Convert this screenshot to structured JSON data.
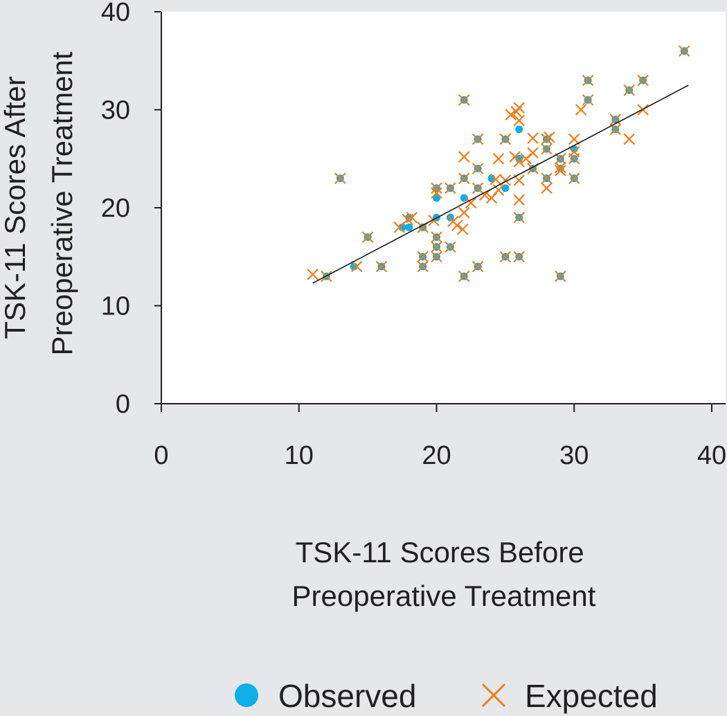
{
  "colors": {
    "background": "#e5e7ea",
    "plot_area": "#ffffff",
    "observed": "#0eaee8",
    "expected": "#ee7d1c",
    "axis": "#231f20",
    "fit_line": "#1a1a1a"
  },
  "chart_data": {
    "type": "scatter",
    "title": "",
    "xlabel": [
      "TSK-11 Scores Before",
      "Preoperative Treatment"
    ],
    "ylabel": [
      "TSK-11 Scores After",
      "Preoperative Treatment"
    ],
    "xlim": [
      0,
      40
    ],
    "ylim": [
      0,
      40
    ],
    "xticks": [
      0,
      10,
      20,
      30,
      40
    ],
    "yticks": [
      0,
      10,
      20,
      30,
      40
    ],
    "grid": false,
    "legend": {
      "placement": "bottom",
      "entries": [
        {
          "name": "Observed",
          "marker": "circle"
        },
        {
          "name": "Expected",
          "marker": "x"
        }
      ]
    },
    "series": [
      {
        "name": "Observed",
        "marker": "circle",
        "points": [
          [
            12,
            13
          ],
          [
            13,
            23
          ],
          [
            14,
            14
          ],
          [
            15,
            17
          ],
          [
            16,
            14
          ],
          [
            17.5,
            18
          ],
          [
            18,
            18
          ],
          [
            18,
            19
          ],
          [
            19,
            18
          ],
          [
            19,
            15
          ],
          [
            19,
            14
          ],
          [
            20,
            17
          ],
          [
            20,
            16
          ],
          [
            20,
            15
          ],
          [
            20,
            19
          ],
          [
            20,
            21
          ],
          [
            20,
            22
          ],
          [
            21,
            22
          ],
          [
            21,
            19
          ],
          [
            21,
            16
          ],
          [
            22,
            31
          ],
          [
            22,
            23
          ],
          [
            22,
            21
          ],
          [
            22,
            13
          ],
          [
            23,
            27
          ],
          [
            23,
            24
          ],
          [
            23,
            22
          ],
          [
            23,
            14
          ],
          [
            24,
            23
          ],
          [
            25,
            27
          ],
          [
            25,
            22
          ],
          [
            25,
            15
          ],
          [
            26,
            28
          ],
          [
            26,
            25
          ],
          [
            26,
            19
          ],
          [
            26,
            15
          ],
          [
            27,
            24
          ],
          [
            28,
            27
          ],
          [
            28,
            26
          ],
          [
            28,
            23
          ],
          [
            29,
            25
          ],
          [
            29,
            24
          ],
          [
            29,
            13
          ],
          [
            30,
            26
          ],
          [
            30,
            25
          ],
          [
            30,
            23
          ],
          [
            31,
            33
          ],
          [
            31,
            31
          ],
          [
            33,
            29
          ],
          [
            33,
            28
          ],
          [
            34,
            32
          ],
          [
            35,
            33
          ],
          [
            38,
            36
          ]
        ]
      },
      {
        "name": "Expected",
        "marker": "x",
        "points": [
          [
            11,
            13.2
          ],
          [
            12,
            13
          ],
          [
            13,
            23
          ],
          [
            14.2,
            14
          ],
          [
            15,
            17
          ],
          [
            16,
            14
          ],
          [
            17.3,
            18
          ],
          [
            17.9,
            18.8
          ],
          [
            18.2,
            19
          ],
          [
            19,
            18
          ],
          [
            19,
            15
          ],
          [
            19,
            14
          ],
          [
            19.8,
            18.7
          ],
          [
            20,
            17
          ],
          [
            20,
            16
          ],
          [
            20,
            15
          ],
          [
            20,
            21.5
          ],
          [
            20,
            22
          ],
          [
            21,
            22
          ],
          [
            21.2,
            18.6
          ],
          [
            21.5,
            18.2
          ],
          [
            21.9,
            17.8
          ],
          [
            21,
            16
          ],
          [
            22,
            31
          ],
          [
            22,
            25.2
          ],
          [
            22,
            23
          ],
          [
            22,
            19.5
          ],
          [
            22,
            13
          ],
          [
            22.5,
            20.5
          ],
          [
            23,
            27
          ],
          [
            23,
            24
          ],
          [
            23,
            22
          ],
          [
            23,
            14
          ],
          [
            23.5,
            21.3
          ],
          [
            24,
            21
          ],
          [
            24.3,
            22.9
          ],
          [
            24.5,
            21.8
          ],
          [
            24.5,
            25
          ],
          [
            25,
            22.8
          ],
          [
            25,
            27
          ],
          [
            25,
            15
          ],
          [
            25.4,
            29.5
          ],
          [
            25.8,
            29.8
          ],
          [
            26,
            28.9
          ],
          [
            26,
            30.2
          ],
          [
            25.7,
            25.2
          ],
          [
            26,
            24.7
          ],
          [
            26,
            22.8
          ],
          [
            26,
            20.8
          ],
          [
            26,
            19
          ],
          [
            26,
            15
          ],
          [
            26.5,
            25
          ],
          [
            27,
            25.6
          ],
          [
            27,
            27.1
          ],
          [
            27,
            24
          ],
          [
            28,
            27
          ],
          [
            28.2,
            27.2
          ],
          [
            28,
            22
          ],
          [
            28,
            23
          ],
          [
            28,
            26
          ],
          [
            29,
            25
          ],
          [
            29,
            24.1
          ],
          [
            29,
            23.8
          ],
          [
            29,
            13
          ],
          [
            30,
            27
          ],
          [
            30,
            25.7
          ],
          [
            30,
            25
          ],
          [
            30,
            23
          ],
          [
            30.5,
            30
          ],
          [
            31,
            33
          ],
          [
            31,
            31
          ],
          [
            33,
            29
          ],
          [
            33,
            28
          ],
          [
            34,
            32
          ],
          [
            34,
            27
          ],
          [
            35,
            33
          ],
          [
            35,
            30
          ],
          [
            38,
            36
          ]
        ]
      }
    ],
    "trend_line": {
      "from": [
        11,
        12.3
      ],
      "to": [
        38.3,
        32.5
      ]
    }
  }
}
